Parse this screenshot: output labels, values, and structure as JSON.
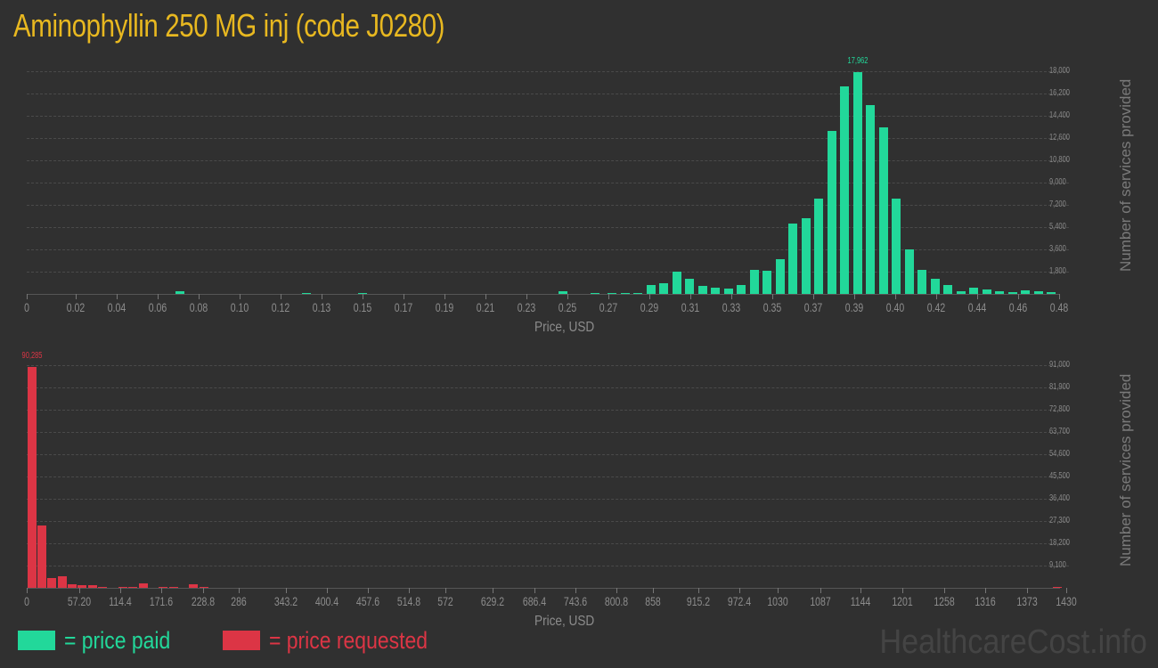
{
  "title": "Aminophyllin 250 MG inj (code J0280)",
  "colors": {
    "paid": "#22d89a",
    "requested": "#dc3545",
    "title": "#e8b820"
  },
  "legend": {
    "paid_label": "= price paid",
    "requested_label": "= price requested"
  },
  "brand": "HealthcareCost.info",
  "chart_data": [
    {
      "type": "bar",
      "title": "price paid",
      "xlabel": "Price, USD",
      "ylabel": "Number of services provided",
      "ylim": [
        0,
        18000
      ],
      "yticks": [
        "1,800",
        "3,600",
        "5,400",
        "7,200",
        "9,000",
        "10,800",
        "12,600",
        "14,400",
        "16,200",
        "18,000"
      ],
      "xticks": [
        "0",
        "0.02",
        "0.04",
        "0.06",
        "0.08",
        "0.10",
        "0.12",
        "0.13",
        "0.15",
        "0.17",
        "0.19",
        "0.21",
        "0.23",
        "0.25",
        "0.27",
        "0.29",
        "0.31",
        "0.33",
        "0.35",
        "0.37",
        "0.39",
        "0.40",
        "0.42",
        "0.44",
        "0.46",
        "0.48"
      ],
      "peak_label": "17,962",
      "grid": true,
      "series": [
        {
          "name": "price paid",
          "x": [
            0.071,
            0.13,
            0.156,
            0.249,
            0.264,
            0.272,
            0.278,
            0.284,
            0.29,
            0.296,
            0.302,
            0.308,
            0.314,
            0.32,
            0.326,
            0.332,
            0.338,
            0.344,
            0.35,
            0.356,
            0.362,
            0.368,
            0.374,
            0.38,
            0.386,
            0.392,
            0.398,
            0.404,
            0.41,
            0.416,
            0.422,
            0.428,
            0.434,
            0.44,
            0.446,
            0.452,
            0.458,
            0.464,
            0.47,
            0.476
          ],
          "values": [
            200,
            60,
            60,
            250,
            100,
            60,
            60,
            60,
            700,
            850,
            1800,
            1200,
            650,
            500,
            450,
            700,
            1950,
            1850,
            2800,
            5700,
            6100,
            7700,
            13200,
            16800,
            17962,
            15300,
            13500,
            7700,
            3600,
            1950,
            1200,
            750,
            250,
            500,
            350,
            250,
            120,
            300,
            200,
            120
          ]
        }
      ]
    },
    {
      "type": "bar",
      "title": "price requested",
      "xlabel": "Price, USD",
      "ylabel": "Number of services provided",
      "ylim": [
        0,
        91000
      ],
      "yticks": [
        "9,100",
        "18,200",
        "27,300",
        "36,400",
        "45,500",
        "54,600",
        "63,700",
        "72,800",
        "81,900",
        "91,000"
      ],
      "xticks": [
        "0",
        "57.20",
        "114.4",
        "171.6",
        "228.8",
        "286",
        "343.2",
        "400.4",
        "457.6",
        "514.8",
        "572",
        "629.2",
        "686.4",
        "743.6",
        "800.8",
        "858",
        "915.2",
        "972.4",
        "1030",
        "1087",
        "1144",
        "1201",
        "1258",
        "1316",
        "1373",
        "1430"
      ],
      "peak_label": "90,285",
      "grid": true,
      "series": [
        {
          "name": "price requested",
          "x": [
            7,
            21,
            35,
            49,
            63,
            77,
            91,
            105,
            133,
            147,
            161,
            189,
            203,
            231,
            245,
            1426
          ],
          "values": [
            90285,
            25500,
            4000,
            4700,
            1600,
            1000,
            1000,
            300,
            400,
            400,
            2000,
            400,
            500,
            1300,
            500,
            400
          ]
        }
      ]
    }
  ]
}
